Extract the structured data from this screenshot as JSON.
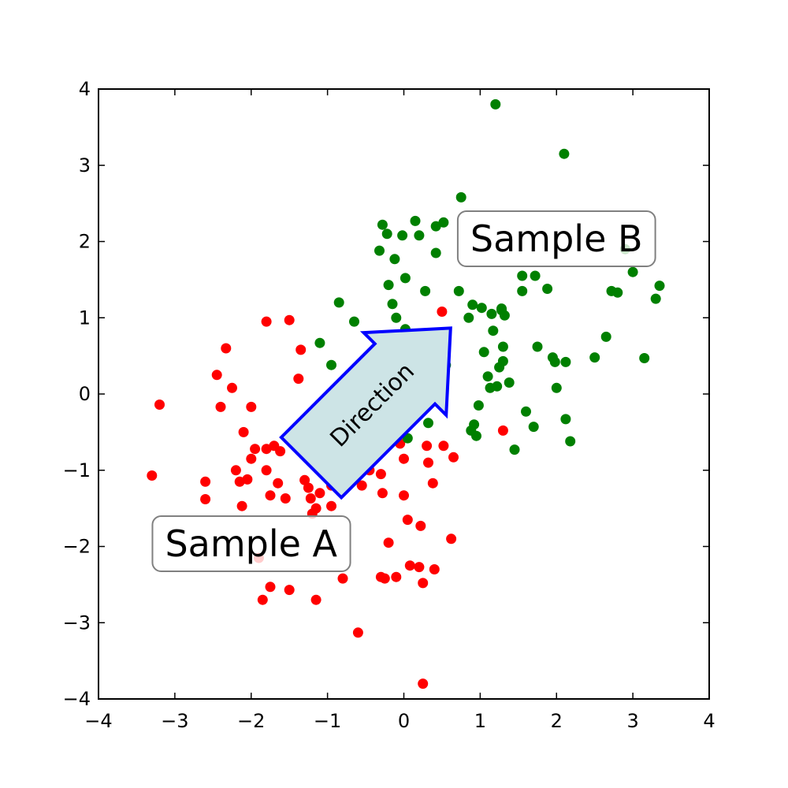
{
  "chart_data": {
    "type": "scatter",
    "title": "",
    "xlabel": "",
    "ylabel": "",
    "xlim": [
      -4,
      4
    ],
    "ylim": [
      -4,
      4
    ],
    "grid": false,
    "legend": "none",
    "x_ticks": [
      -4,
      -3,
      -2,
      -1,
      0,
      1,
      2,
      3,
      4
    ],
    "y_ticks": [
      -4,
      -3,
      -2,
      -1,
      0,
      1,
      2,
      3,
      4
    ],
    "tick_labels": {
      "x": [
        "−4",
        "−3",
        "−2",
        "−1",
        "0",
        "1",
        "2",
        "3",
        "4"
      ],
      "y": [
        "−4",
        "−3",
        "−2",
        "−1",
        "0",
        "1",
        "2",
        "3",
        "4"
      ]
    },
    "series": [
      {
        "color": "#ff0000",
        "points": [
          [
            -3.3,
            -1.07
          ],
          [
            -3.2,
            -0.14
          ],
          [
            -2.6,
            -1.15
          ],
          [
            -2.6,
            -1.38
          ],
          [
            -2.45,
            0.25
          ],
          [
            -2.4,
            -0.17
          ],
          [
            -2.33,
            0.6
          ],
          [
            -2.25,
            0.08
          ],
          [
            -2.2,
            -1.0
          ],
          [
            -2.15,
            -1.15
          ],
          [
            -2.12,
            -1.47
          ],
          [
            -2.1,
            -0.5
          ],
          [
            -2.05,
            -1.12
          ],
          [
            -2.0,
            -0.85
          ],
          [
            -2.0,
            -0.17
          ],
          [
            -1.95,
            -0.72
          ],
          [
            -1.9,
            -2.15
          ],
          [
            -1.85,
            -2.7
          ],
          [
            -1.8,
            -1.0
          ],
          [
            -1.8,
            -0.72
          ],
          [
            -1.8,
            0.95
          ],
          [
            -1.75,
            -1.33
          ],
          [
            -1.75,
            -2.53
          ],
          [
            -1.7,
            -0.68
          ],
          [
            -1.65,
            -1.17
          ],
          [
            -1.62,
            -0.75
          ],
          [
            -1.55,
            -1.37
          ],
          [
            -1.5,
            -0.6
          ],
          [
            -1.5,
            -2.57
          ],
          [
            -1.5,
            0.97
          ],
          [
            -1.4,
            -0.43
          ],
          [
            -1.38,
            0.2
          ],
          [
            -1.35,
            0.58
          ],
          [
            -1.3,
            -1.13
          ],
          [
            -1.28,
            -0.7
          ],
          [
            -1.25,
            -1.23
          ],
          [
            -1.22,
            -1.37
          ],
          [
            -1.2,
            -1.57
          ],
          [
            -1.2,
            -0.62
          ],
          [
            -1.15,
            -1.5
          ],
          [
            -1.15,
            -2.7
          ],
          [
            -1.1,
            -1.3
          ],
          [
            -1.05,
            -0.9
          ],
          [
            -1.05,
            -0.75
          ],
          [
            -1.0,
            -0.92
          ],
          [
            -0.95,
            -1.47
          ],
          [
            -0.95,
            -1.2
          ],
          [
            -0.95,
            -0.4
          ],
          [
            -0.9,
            -0.82
          ],
          [
            -0.85,
            -1.0
          ],
          [
            -0.8,
            -2.42
          ],
          [
            -0.78,
            -1.2
          ],
          [
            -0.75,
            -0.75
          ],
          [
            -0.7,
            -0.2
          ],
          [
            -0.6,
            -3.13
          ],
          [
            -0.55,
            -1.2
          ],
          [
            -0.45,
            -1.0
          ],
          [
            -0.35,
            -0.8
          ],
          [
            -0.3,
            -1.05
          ],
          [
            -0.28,
            -1.3
          ],
          [
            -0.3,
            -2.4
          ],
          [
            -0.25,
            -2.42
          ],
          [
            -0.2,
            -1.95
          ],
          [
            -0.15,
            -0.55
          ],
          [
            -0.1,
            -2.4
          ],
          [
            -0.05,
            -0.65
          ],
          [
            0.0,
            -0.85
          ],
          [
            0.0,
            -1.33
          ],
          [
            0.05,
            -1.65
          ],
          [
            0.08,
            -2.25
          ],
          [
            0.2,
            -2.27
          ],
          [
            0.22,
            -1.73
          ],
          [
            0.25,
            -2.48
          ],
          [
            0.25,
            -3.8
          ],
          [
            0.3,
            -0.68
          ],
          [
            0.32,
            -0.9
          ],
          [
            0.38,
            -1.17
          ],
          [
            0.4,
            -2.3
          ],
          [
            0.5,
            1.08
          ],
          [
            0.52,
            -0.68
          ],
          [
            0.62,
            -1.9
          ],
          [
            0.65,
            -0.83
          ],
          [
            1.3,
            -0.48
          ]
        ]
      },
      {
        "color": "#008000",
        "points": [
          [
            -1.1,
            0.67
          ],
          [
            -0.95,
            0.38
          ],
          [
            -0.85,
            1.2
          ],
          [
            -0.65,
            0.95
          ],
          [
            -0.32,
            1.88
          ],
          [
            -0.28,
            2.22
          ],
          [
            -0.22,
            2.1
          ],
          [
            -0.2,
            1.43
          ],
          [
            -0.15,
            1.18
          ],
          [
            -0.12,
            1.77
          ],
          [
            -0.1,
            1.0
          ],
          [
            -0.02,
            2.08
          ],
          [
            0.02,
            1.52
          ],
          [
            0.02,
            0.85
          ],
          [
            0.05,
            -0.58
          ],
          [
            0.15,
            2.27
          ],
          [
            0.2,
            2.08
          ],
          [
            0.25,
            0.7
          ],
          [
            0.28,
            1.35
          ],
          [
            0.32,
            -0.38
          ],
          [
            0.42,
            2.2
          ],
          [
            0.42,
            1.85
          ],
          [
            0.52,
            2.25
          ],
          [
            0.55,
            0.38
          ],
          [
            0.72,
            1.35
          ],
          [
            0.75,
            2.58
          ],
          [
            0.85,
            1.0
          ],
          [
            0.88,
            -0.48
          ],
          [
            0.9,
            1.17
          ],
          [
            0.92,
            -0.4
          ],
          [
            0.95,
            -0.55
          ],
          [
            0.98,
            -0.15
          ],
          [
            1.02,
            1.13
          ],
          [
            1.05,
            0.55
          ],
          [
            1.1,
            0.23
          ],
          [
            1.13,
            0.08
          ],
          [
            1.15,
            1.05
          ],
          [
            1.17,
            0.83
          ],
          [
            1.2,
            3.8
          ],
          [
            1.22,
            0.1
          ],
          [
            1.25,
            0.35
          ],
          [
            1.28,
            1.1
          ],
          [
            1.28,
            1.12
          ],
          [
            1.3,
            0.62
          ],
          [
            1.3,
            0.43
          ],
          [
            1.32,
            1.03
          ],
          [
            1.38,
            0.15
          ],
          [
            1.45,
            -0.73
          ],
          [
            1.55,
            1.55
          ],
          [
            1.55,
            1.35
          ],
          [
            1.6,
            -0.23
          ],
          [
            1.7,
            -0.43
          ],
          [
            1.72,
            1.55
          ],
          [
            1.75,
            0.62
          ],
          [
            1.88,
            1.38
          ],
          [
            1.95,
            0.48
          ],
          [
            1.98,
            0.42
          ],
          [
            2.0,
            0.08
          ],
          [
            2.1,
            3.15
          ],
          [
            2.12,
            -0.33
          ],
          [
            2.12,
            0.42
          ],
          [
            2.18,
            -0.62
          ],
          [
            2.5,
            0.48
          ],
          [
            2.65,
            0.75
          ],
          [
            2.72,
            1.35
          ],
          [
            2.8,
            1.33
          ],
          [
            2.9,
            1.9
          ],
          [
            3.0,
            1.6
          ],
          [
            3.15,
            0.47
          ],
          [
            3.3,
            1.25
          ],
          [
            3.35,
            1.42
          ]
        ]
      }
    ],
    "annotations": {
      "sample_a": "Sample A",
      "sample_b": "Sample B",
      "direction": "Direction"
    }
  }
}
